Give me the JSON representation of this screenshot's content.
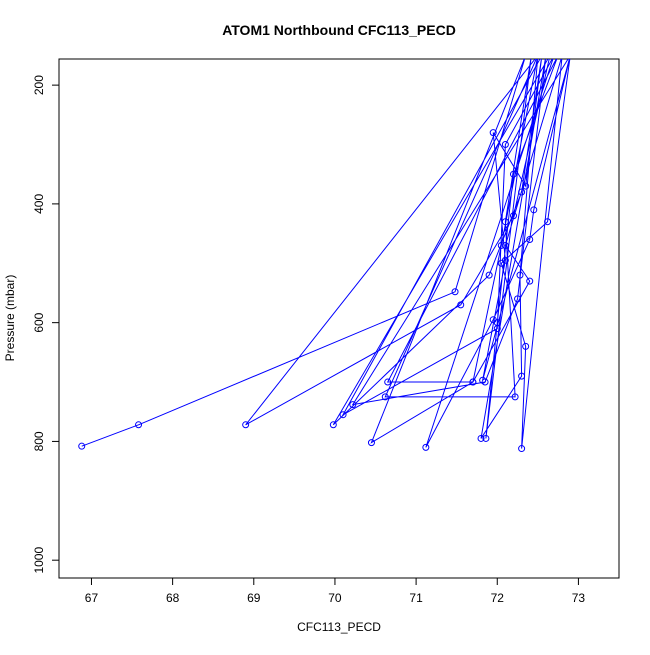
{
  "chart_data": {
    "type": "line",
    "title": "ATOM1 Northbound CFC113_PECD",
    "x_label": "CFC113_PECD",
    "y_label": "Pressure (mbar)",
    "x": [
      66.88,
      67.58,
      71.48,
      72.35,
      70.45,
      71.7,
      72.05,
      72.5,
      68.9,
      71.55,
      72.2,
      72.65,
      69.98,
      71.9,
      72.3,
      72.55,
      70.1,
      72.0,
      72.1,
      72.7,
      71.12,
      71.95,
      72.4,
      72.45,
      72.9,
      70.22,
      71.85,
      72.25,
      72.6,
      71.8,
      72.3,
      72.28,
      72.5,
      70.62,
      72.22,
      72.1,
      72.42,
      71.86,
      72.0,
      72.2,
      72.75,
      70.65,
      71.7,
      72.4,
      72.1,
      72.8,
      72.3,
      72.35,
      72.05,
      72.62,
      72.9,
      71.82,
      72.1,
      71.95,
      72.35,
      72.55
    ],
    "series": [
      {
        "color": "#0000ff",
        "values": [
          808,
          772,
          548,
          150,
          802,
          700,
          470,
          150,
          772,
          570,
          420,
          150,
          772,
          520,
          380,
          150,
          755,
          610,
          300,
          150,
          810,
          595,
          460,
          410,
          150,
          738,
          700,
          560,
          150,
          795,
          690,
          520,
          150,
          725,
          725,
          430,
          150,
          795,
          600,
          350,
          150,
          700,
          700,
          530,
          470,
          150,
          812,
          640,
          500,
          430,
          150,
          697,
          495,
          280,
          370,
          150
        ]
      }
    ],
    "xlim": [
      66.6,
      73.5
    ],
    "ylim": [
      1030,
      156
    ],
    "xticks": [
      67,
      68,
      69,
      70,
      71,
      72,
      73
    ],
    "yticks": [
      200,
      400,
      600,
      800,
      1000
    ]
  }
}
